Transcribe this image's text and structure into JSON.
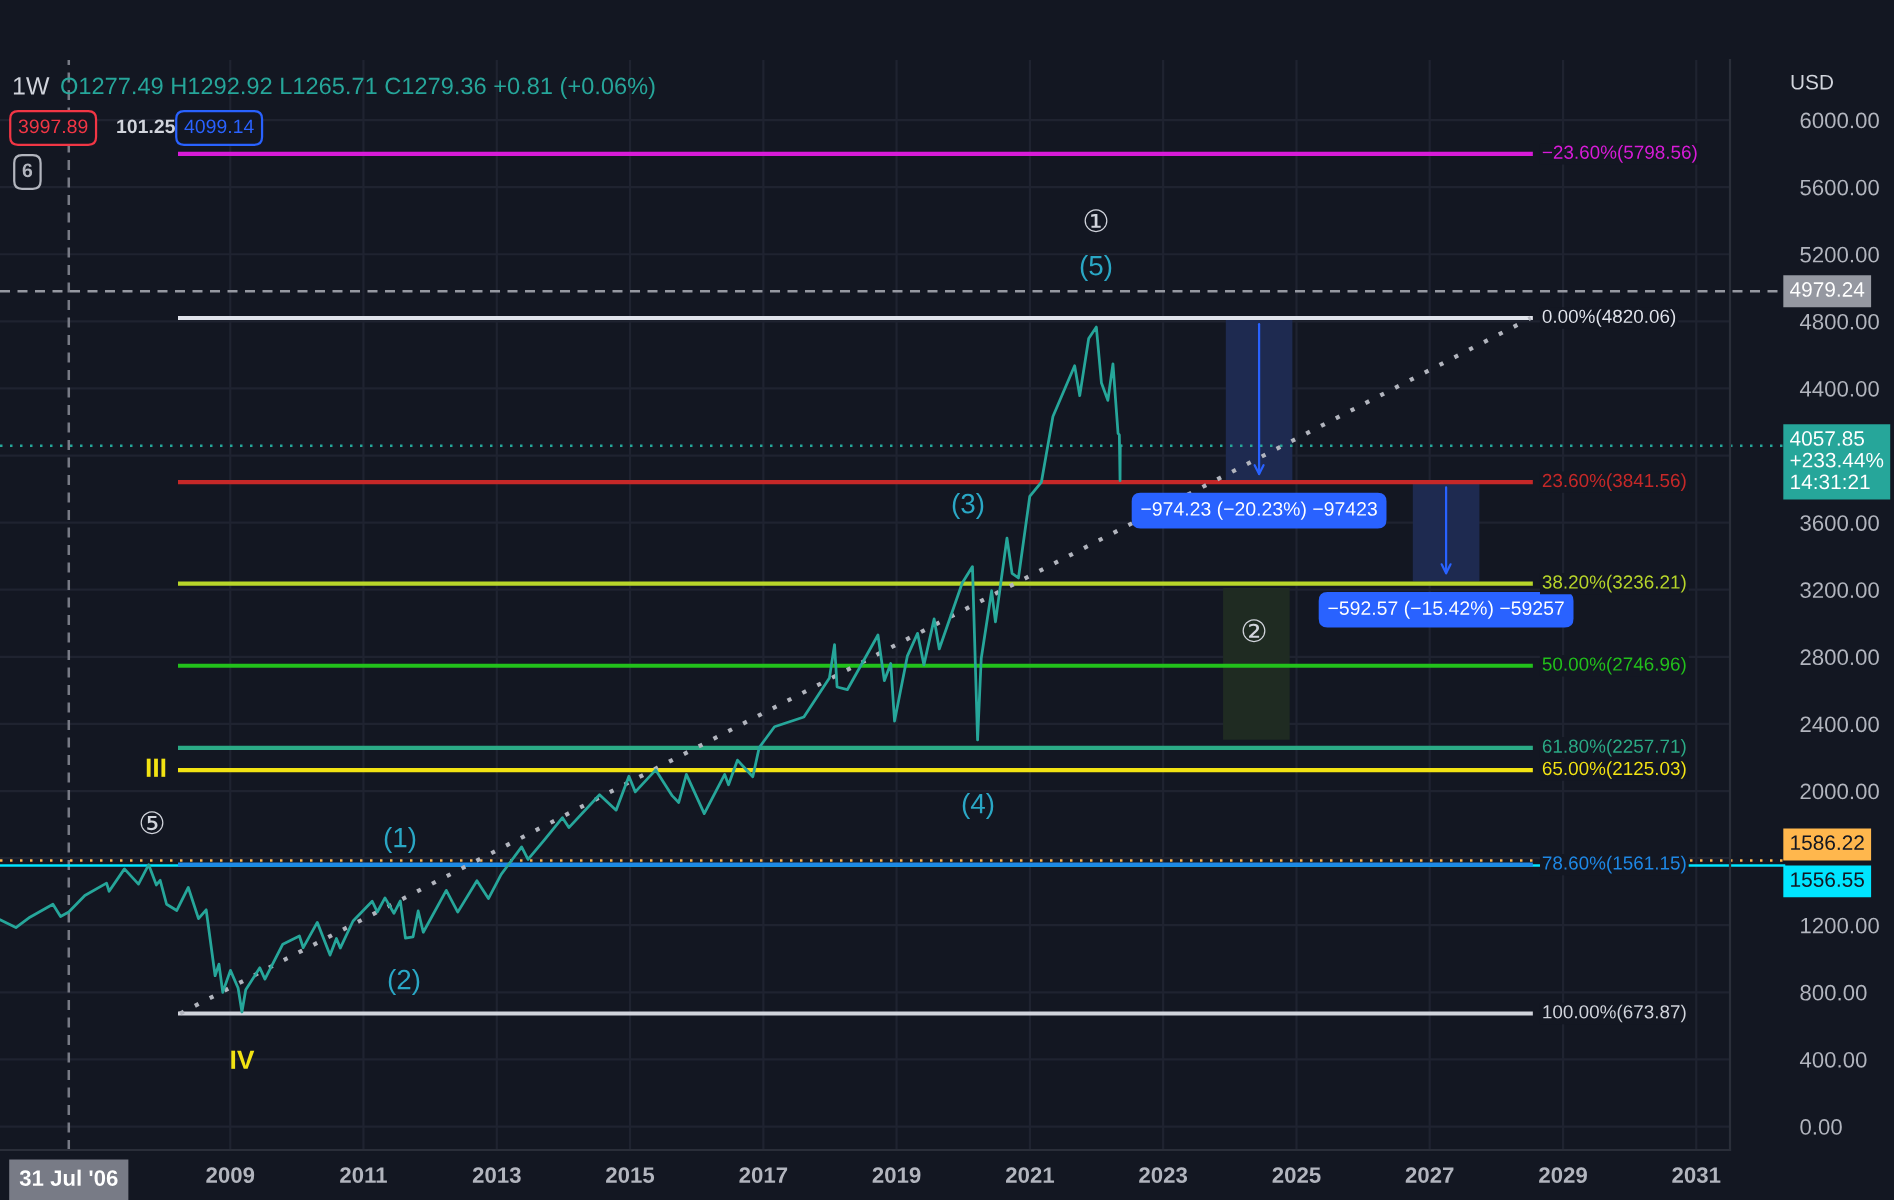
{
  "chart_data": {
    "type": "line",
    "title": "1W",
    "subtitle": "O1277.49 H1292.92 L1265.71 C1279.36 +0.81 (+0.06%)",
    "ylabel": "USD",
    "xlim": [
      "2005-07-19",
      "2031-07-05"
    ],
    "ylim": [
      -140,
      6358
    ],
    "xticks": [
      {
        "value": "2009-01-01",
        "label": "2009"
      },
      {
        "value": "2011-01-01",
        "label": "2011"
      },
      {
        "value": "2013-01-01",
        "label": "2013"
      },
      {
        "value": "2015-01-01",
        "label": "2015"
      },
      {
        "value": "2017-01-01",
        "label": "2017"
      },
      {
        "value": "2019-01-01",
        "label": "2019"
      },
      {
        "value": "2021-01-01",
        "label": "2021"
      },
      {
        "value": "2023-01-01",
        "label": "2023"
      },
      {
        "value": "2025-01-01",
        "label": "2025"
      },
      {
        "value": "2027-01-01",
        "label": "2027"
      },
      {
        "value": "2029-01-01",
        "label": "2029"
      },
      {
        "value": "2031-01-01",
        "label": "2031"
      }
    ],
    "yticks": [
      {
        "value": 0,
        "label": "0.00"
      },
      {
        "value": 400,
        "label": "400.00"
      },
      {
        "value": 800,
        "label": "800.00"
      },
      {
        "value": 1200,
        "label": "1200.00"
      },
      {
        "value": 1600,
        "label": null
      },
      {
        "value": 2000,
        "label": "2000.00"
      },
      {
        "value": 2400,
        "label": "2400.00"
      },
      {
        "value": 2800,
        "label": "2800.00"
      },
      {
        "value": 3200,
        "label": "3200.00"
      },
      {
        "value": 3600,
        "label": "3600.00"
      },
      {
        "value": 4000,
        "label": null
      },
      {
        "value": 4400,
        "label": "4400.00"
      },
      {
        "value": 4800,
        "label": "4800.00"
      },
      {
        "value": 5200,
        "label": "5200.00"
      },
      {
        "value": 5600,
        "label": "5600.00"
      },
      {
        "value": 6000,
        "label": "6000.00"
      }
    ],
    "grid": true,
    "series": [
      {
        "type": "bar",
        "color": "#1e2a50",
        "x": [
          "2024-06-10",
          "2027-04-01"
        ],
        "base": [
          4816,
          3843
        ],
        "values": [
          -974.23,
          -592.57
        ],
        "value_labels": [
          "−974.23 (−20.23%) −97423",
          "−592.57 (−15.42%) −59257"
        ]
      },
      {
        "type": "bar",
        "color": "#1f2b22",
        "x": [
          "2024-05-26"
        ],
        "base": [
          3210
        ],
        "values": [
          -905
        ]
      },
      {
        "name": "−23.60%(5798.56)",
        "color": "#d81bd8",
        "x": [
          "2008-04-01",
          "2028-07-08"
        ],
        "values": [
          5798.56,
          5798.56
        ]
      },
      {
        "name": "0.00%(4820.06)",
        "color": "#e0e3eb",
        "x": [
          "2008-04-01",
          "2028-07-08"
        ],
        "values": [
          4820.06,
          4820.06
        ]
      },
      {
        "name": "23.60%(3841.56)",
        "color": "#c62828",
        "x": [
          "2008-04-01",
          "2028-07-08"
        ],
        "values": [
          3841.56,
          3841.56
        ]
      },
      {
        "name": "38.20%(3236.21)",
        "color": "#b8d62a",
        "x": [
          "2008-04-01",
          "2028-07-08"
        ],
        "values": [
          3236.21,
          3236.21
        ]
      },
      {
        "name": "50.00%(2746.96)",
        "color": "#22c11b",
        "x": [
          "2008-04-01",
          "2028-07-08"
        ],
        "values": [
          2746.96,
          2746.96
        ]
      },
      {
        "name": "61.80%(2257.71)",
        "color": "#2bab86",
        "x": [
          "2008-04-01",
          "2028-07-08"
        ],
        "values": [
          2257.71,
          2257.71
        ]
      },
      {
        "name": "65.00%(2125.03)",
        "color": "#f2e313",
        "x": [
          "2008-04-01",
          "2028-07-08"
        ],
        "values": [
          2125.03,
          2125.03
        ]
      },
      {
        "name": "78.60%(1561.15)",
        "color": "#1e88e5",
        "x": [
          "2008-04-01",
          "2028-07-08"
        ],
        "values": [
          1561.15,
          1561.15
        ]
      },
      {
        "name": "100.00%(673.87)",
        "color": "#d1d4dc",
        "x": [
          "2008-04-01",
          "2028-07-08"
        ],
        "values": [
          673.87,
          673.87
        ]
      },
      {
        "line_style": "dotted",
        "color": "#b2b5be",
        "x": [
          "2008-04-01",
          "2028-07-08"
        ],
        "values": [
          673.87,
          4820.06
        ]
      },
      {
        "color": "#26a69a",
        "x": [
          "2005-07-22",
          "2005-10-14",
          "2005-12-30",
          "2006-05-05",
          "2006-06-16",
          "2006-07-31",
          "2006-10-27",
          "2007-02-23",
          "2007-03-09",
          "2007-06-01",
          "2007-08-17",
          "2007-10-12",
          "2007-11-23",
          "2007-12-14",
          "2008-01-18",
          "2008-03-14",
          "2008-05-16",
          "2008-07-11",
          "2008-08-22",
          "2008-10-10",
          "2008-10-31",
          "2008-11-21",
          "2009-01-02",
          "2009-02-13",
          "2009-03-06",
          "2009-03-27",
          "2009-06-12",
          "2009-07-10",
          "2009-10-16",
          "2010-01-15",
          "2010-02-05",
          "2010-04-23",
          "2010-07-02",
          "2010-08-06",
          "2010-08-27",
          "2010-11-05",
          "2011-02-18",
          "2011-03-18",
          "2011-04-29",
          "2011-06-17",
          "2011-07-22",
          "2011-08-19",
          "2011-09-30",
          "2011-10-28",
          "2011-11-25",
          "2012-03-30",
          "2012-06-01",
          "2012-09-14",
          "2012-11-16",
          "2013-01-25",
          "2013-05-17",
          "2013-06-21",
          "2013-09-20",
          "2013-12-27",
          "2014-01-31",
          "2014-07-18",
          "2014-10-17",
          "2014-12-26",
          "2015-01-30",
          "2015-05-22",
          "2015-08-21",
          "2015-09-25",
          "2015-11-06",
          "2016-02-12",
          "2016-06-03",
          "2016-06-24",
          "2016-08-12",
          "2016-11-04",
          "2016-12-09",
          "2017-03-03",
          "2017-08-11",
          "2017-12-29",
          "2018-01-26",
          "2018-02-09",
          "2018-04-06",
          "2018-09-21",
          "2018-10-26",
          "2018-11-30",
          "2018-12-21",
          "2019-03-01",
          "2019-04-26",
          "2019-05-31",
          "2019-07-26",
          "2019-08-23",
          "2019-12-27",
          "2020-02-21",
          "2020-03-20",
          "2020-04-09",
          "2020-06-05",
          "2020-06-26",
          "2020-08-28",
          "2020-09-25",
          "2020-10-30",
          "2020-12-31",
          "2021-03-05",
          "2021-05-07",
          "2021-09-03",
          "2021-10-01",
          "2021-11-19",
          "2021-12-31",
          "2022-01-28",
          "2022-03-04",
          "2022-04-01",
          "2022-04-29",
          "2022-05-06",
          "2022-05-10",
          "2022-05-11"
        ],
        "values": [
          1231,
          1186,
          1248,
          1325,
          1252,
          1279,
          1377,
          1451,
          1402,
          1536,
          1445,
          1561,
          1440,
          1468,
          1325,
          1288,
          1425,
          1239,
          1292,
          899,
          968,
          800,
          931,
          826,
          683,
          815,
          946,
          879,
          1087,
          1136,
          1066,
          1217,
          1022,
          1121,
          1064,
          1225,
          1343,
          1279,
          1363,
          1271,
          1345,
          1123,
          1131,
          1285,
          1158,
          1408,
          1278,
          1465,
          1359,
          1503,
          1667,
          1592,
          1710,
          1841,
          1782,
          1978,
          1886,
          2088,
          1995,
          2126,
          1971,
          1932,
          2099,
          1865,
          2099,
          2037,
          2184,
          2085,
          2259,
          2383,
          2441,
          2674,
          2873,
          2620,
          2604,
          2930,
          2658,
          2760,
          2417,
          2804,
          2940,
          2752,
          3026,
          2847,
          3240,
          3338,
          2305,
          2790,
          3194,
          3009,
          3508,
          3298,
          3270,
          3756,
          3842,
          4233,
          4535,
          4357,
          4698,
          4766,
          4432,
          4329,
          4546,
          4132,
          4123,
          3850,
          4058
        ]
      }
    ],
    "ref_lines": [
      {
        "axis": "x",
        "value": "2006-07-31",
        "label": "31 Jul '06",
        "color": "#787b86",
        "line_style": "dashed"
      },
      {
        "axis": "y",
        "value": 4979.24,
        "label": "4979.24",
        "color": "#9598a1",
        "line_style": "dashed"
      },
      {
        "axis": "y",
        "value": 4057.85,
        "label": "4057.85\n+233.44%\n14:31:21",
        "color": "#26a69a",
        "line_style": "dotted"
      },
      {
        "axis": "y",
        "value": 1586.22,
        "label": "1586.22",
        "color": "#ffb74d",
        "line_style": "dotted"
      },
      {
        "axis": "y",
        "value": 1556.55,
        "label": "1556.55",
        "color": "#00e5ff",
        "line_style": "solid"
      }
    ],
    "annotations": [
      "⑤",
      "III",
      "IV",
      "(1)",
      "(2)",
      "(3)",
      "(4)",
      "(5)",
      "①",
      "②",
      "3997.89",
      "101.25",
      "4099.14",
      "6"
    ]
  }
}
